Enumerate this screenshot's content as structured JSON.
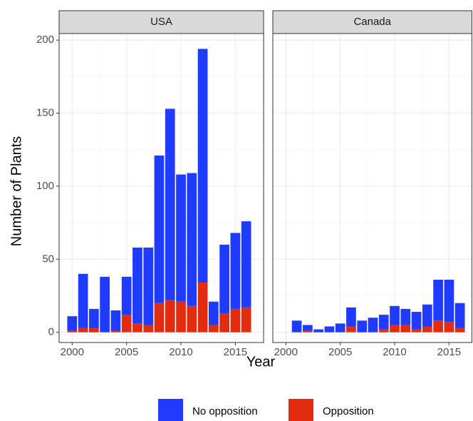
{
  "chart_data": [
    {
      "type": "bar",
      "stacked": true,
      "title": "USA",
      "ylabel": "Number of Plants",
      "xlabel": "Year",
      "x": [
        2000,
        2001,
        2002,
        2003,
        2004,
        2005,
        2006,
        2007,
        2008,
        2009,
        2010,
        2011,
        2012,
        2013,
        2014,
        2015,
        2016
      ],
      "series": [
        {
          "name": "Opposition",
          "color": "#e32b0f",
          "values": [
            1,
            3,
            3,
            0,
            1,
            12,
            6,
            5,
            20,
            22,
            21,
            18,
            34,
            5,
            13,
            16,
            17
          ]
        },
        {
          "name": "No opposition",
          "color": "#1f3bff",
          "values": [
            10,
            37,
            13,
            38,
            14,
            26,
            52,
            53,
            101,
            131,
            87,
            91,
            160,
            16,
            47,
            52,
            59
          ]
        }
      ],
      "xlim": [
        1998.8,
        2017.6
      ],
      "xticks": [
        2000,
        2005,
        2010,
        2015
      ],
      "xminor": [
        2002.5,
        2007.5,
        2012.5
      ],
      "ylim": [
        -7,
        204.5
      ],
      "yticks": [
        0,
        50,
        100,
        150,
        200
      ],
      "yminor": [
        25,
        75,
        125,
        175
      ],
      "grid": true
    },
    {
      "type": "bar",
      "stacked": true,
      "title": "Canada",
      "x": [
        2000,
        2001,
        2002,
        2003,
        2004,
        2005,
        2006,
        2007,
        2008,
        2009,
        2010,
        2011,
        2012,
        2013,
        2014,
        2015,
        2016
      ],
      "series": [
        {
          "name": "Opposition",
          "color": "#e32b0f",
          "values": [
            0,
            0,
            1,
            0,
            0,
            0,
            4,
            0,
            0,
            2,
            5,
            5,
            2,
            4,
            8,
            7,
            3
          ]
        },
        {
          "name": "No opposition",
          "color": "#1f3bff",
          "values": [
            0,
            8,
            4,
            2,
            4,
            6,
            13,
            8,
            10,
            10,
            13,
            11,
            12,
            15,
            28,
            29,
            17
          ]
        }
      ],
      "xlim": [
        1998.8,
        2017.1
      ],
      "xticks": [
        2000,
        2005,
        2010,
        2015
      ],
      "xminor": [
        2002.5,
        2007.5,
        2012.5
      ],
      "ylim": [
        -7,
        204.5
      ],
      "yticks": [
        0,
        50,
        100,
        150,
        200
      ],
      "yminor": [
        25,
        75,
        125,
        175
      ],
      "grid": true
    }
  ]
}
